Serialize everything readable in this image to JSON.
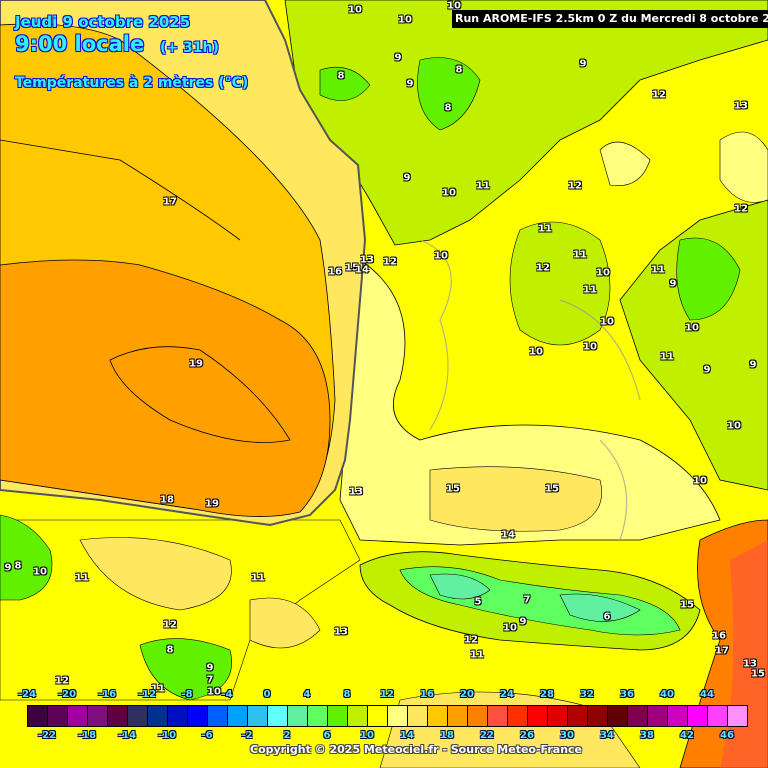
{
  "header": {
    "date": "Jeudi 9 octobre 2025",
    "time": "9:00 locale",
    "offset": "(+ 31h)",
    "variable": "Températures à 2 mètres (°C)",
    "run": "Run AROME-IFS 2.5km 0 Z du Mercredi 8 octobre 2025"
  },
  "legend": {
    "unit": "°C",
    "ticks_top": [
      "-24",
      "-20",
      "-16",
      "-12",
      "-8",
      "-4",
      "0",
      "4",
      "8",
      "12",
      "16",
      "20",
      "24",
      "28",
      "32",
      "36",
      "40",
      "44"
    ],
    "ticks_bottom": [
      "-22",
      "-18",
      "-14",
      "-10",
      "-6",
      "-2",
      "2",
      "6",
      "10",
      "14",
      "18",
      "22",
      "26",
      "30",
      "34",
      "38",
      "42",
      "46"
    ],
    "colors": [
      "#3c0040",
      "#5c0058",
      "#a000a0",
      "#801080",
      "#600040",
      "#303060",
      "#003090",
      "#0010c0",
      "#0000ff",
      "#0060ff",
      "#00a0ff",
      "#30c0f0",
      "#60ffff",
      "#60f0a0",
      "#60ff60",
      "#60f000",
      "#c0f000",
      "#ffff00",
      "#ffff80",
      "#ffe860",
      "#ffc800",
      "#ffa000",
      "#ff8000",
      "#ff5040",
      "#ff3000",
      "#ff0000",
      "#e00000",
      "#b00000",
      "#900000",
      "#600000",
      "#800050",
      "#a00080",
      "#d000c0",
      "#ff00ff",
      "#ff40ff",
      "#ff90ff"
    ]
  },
  "contour_labels": [
    "10",
    "10",
    "10",
    "9",
    "8",
    "8",
    "9",
    "9",
    "12",
    "13",
    "8",
    "9",
    "10",
    "11",
    "12",
    "12",
    "11",
    "11",
    "10",
    "12",
    "13",
    "16",
    "15",
    "14",
    "12",
    "10",
    "11",
    "11",
    "9",
    "10",
    "10",
    "10",
    "10",
    "11",
    "9",
    "9",
    "10",
    "10",
    "15",
    "15",
    "13",
    "18",
    "19",
    "14",
    "17",
    "19",
    "9",
    "8",
    "10",
    "11",
    "11",
    "12",
    "13",
    "12",
    "11",
    "10",
    "9",
    "7",
    "6",
    "5",
    "15",
    "16",
    "17",
    "13",
    "15",
    "12",
    "11",
    "10",
    "9",
    "8",
    "7"
  ],
  "copyright": "Copyright © 2025 Meteociel.fr - Source Meteo-France"
}
